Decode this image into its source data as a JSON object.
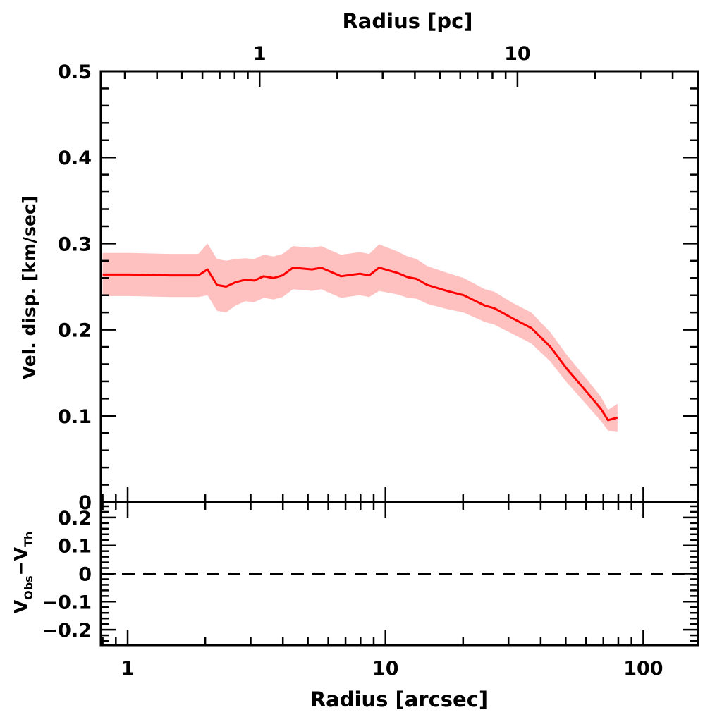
{
  "chart_data": [
    {
      "type": "line",
      "panel": "main",
      "title": "",
      "xlabel": "Radius [arcsec]",
      "xlabel_top": "Radius [pc]",
      "ylabel": "Vel. disp. [km/sec]",
      "xscale": "log",
      "xlim": [
        0.787,
        163
      ],
      "ylim": [
        0,
        0.5
      ],
      "x_ticks": [
        "1",
        "10",
        "100"
      ],
      "x_top_ticks": [
        "1",
        "10"
      ],
      "y_ticks": [
        "0",
        "0.1",
        "0.2",
        "0.3",
        "0.4",
        "0.5"
      ],
      "grid": false,
      "colors": {
        "line": "#ff0000",
        "band": "#ffc0c0"
      },
      "x": [
        0.8,
        1.02,
        1.46,
        1.88,
        2.04,
        2.22,
        2.41,
        2.62,
        2.86,
        3.1,
        3.37,
        3.68,
        3.99,
        4.38,
        5.19,
        5.63,
        6.72,
        7.96,
        8.65,
        9.44,
        11.1,
        12.2,
        13.2,
        14.5,
        17.3,
        20.1,
        24.3,
        26.4,
        31.2,
        36.8,
        43.6,
        50.4,
        60.6,
        68.5,
        73.0,
        79.4
      ],
      "y": [
        0.264,
        0.264,
        0.263,
        0.263,
        0.27,
        0.252,
        0.25,
        0.255,
        0.258,
        0.257,
        0.262,
        0.26,
        0.263,
        0.272,
        0.27,
        0.272,
        0.262,
        0.265,
        0.263,
        0.272,
        0.266,
        0.261,
        0.259,
        0.252,
        0.245,
        0.24,
        0.228,
        0.225,
        0.213,
        0.202,
        0.18,
        0.155,
        0.127,
        0.108,
        0.095,
        0.098
      ],
      "y_err": [
        0.025,
        0.025,
        0.025,
        0.025,
        0.03,
        0.03,
        0.03,
        0.027,
        0.025,
        0.025,
        0.025,
        0.025,
        0.025,
        0.025,
        0.025,
        0.025,
        0.025,
        0.025,
        0.025,
        0.027,
        0.025,
        0.024,
        0.023,
        0.022,
        0.021,
        0.02,
        0.019,
        0.019,
        0.018,
        0.018,
        0.017,
        0.016,
        0.015,
        0.014,
        0.012,
        0.016
      ]
    },
    {
      "type": "line",
      "panel": "residual",
      "ylabel": "V_Obs − V_Th",
      "ylabel_main": "V",
      "ylabel_sub1": "Obs",
      "ylabel_mid": "−V",
      "ylabel_sub2": "Th",
      "xscale": "log",
      "xlim": [
        0.787,
        163
      ],
      "ylim": [
        -0.255,
        0.255
      ],
      "y_ticks": [
        "−0.2",
        "−0.1",
        "0",
        "0.1",
        "0.2"
      ],
      "reference_line": {
        "y": 0,
        "style": "dashed",
        "color": "#000000"
      }
    }
  ]
}
